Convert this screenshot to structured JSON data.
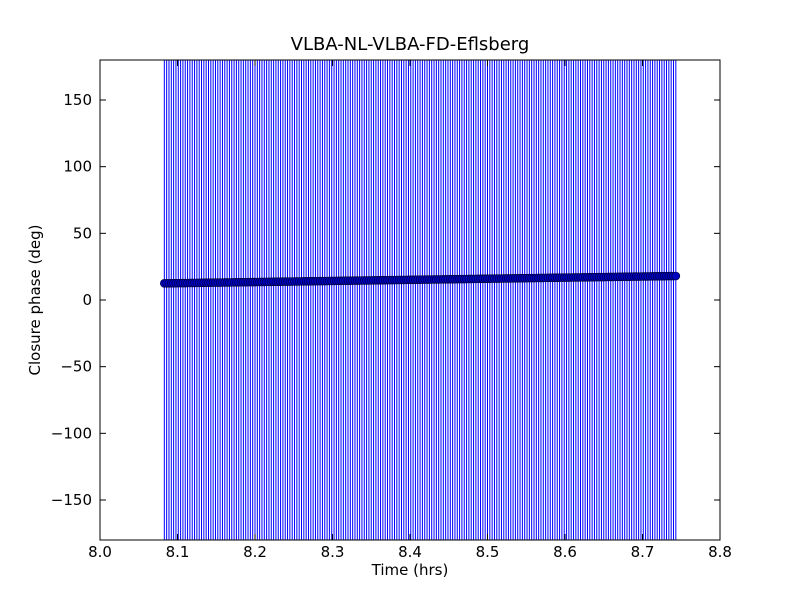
{
  "chart_data": {
    "type": "scatter",
    "title": "VLBA-NL-VLBA-FD-Eflsberg",
    "xlabel": "Time (hrs)",
    "ylabel": "Closure phase (deg)",
    "xlim": [
      8.0,
      8.8
    ],
    "ylim": [
      -180,
      180
    ],
    "xticks": [
      8.0,
      8.1,
      8.2,
      8.3,
      8.4,
      8.5,
      8.6,
      8.7,
      8.8
    ],
    "xtick_labels": [
      "8.0",
      "8.1",
      "8.2",
      "8.3",
      "8.4",
      "8.5",
      "8.6",
      "8.7",
      "8.8"
    ],
    "yticks": [
      -150,
      -100,
      -50,
      0,
      50,
      100,
      150
    ],
    "ytick_labels": [
      "−150",
      "−100",
      "−50",
      "0",
      "50",
      "100",
      "150"
    ],
    "grid": false,
    "colors": {
      "marker": "#0000bf",
      "errorbar": "#0000ff",
      "axes": "#000000"
    },
    "series": [
      {
        "x_start": 8.083,
        "x_end": 8.743,
        "x_step": 0.003,
        "y_start": 12.5,
        "y_end": 18.0,
        "yerr_low": -180,
        "yerr_high": 180
      }
    ]
  }
}
